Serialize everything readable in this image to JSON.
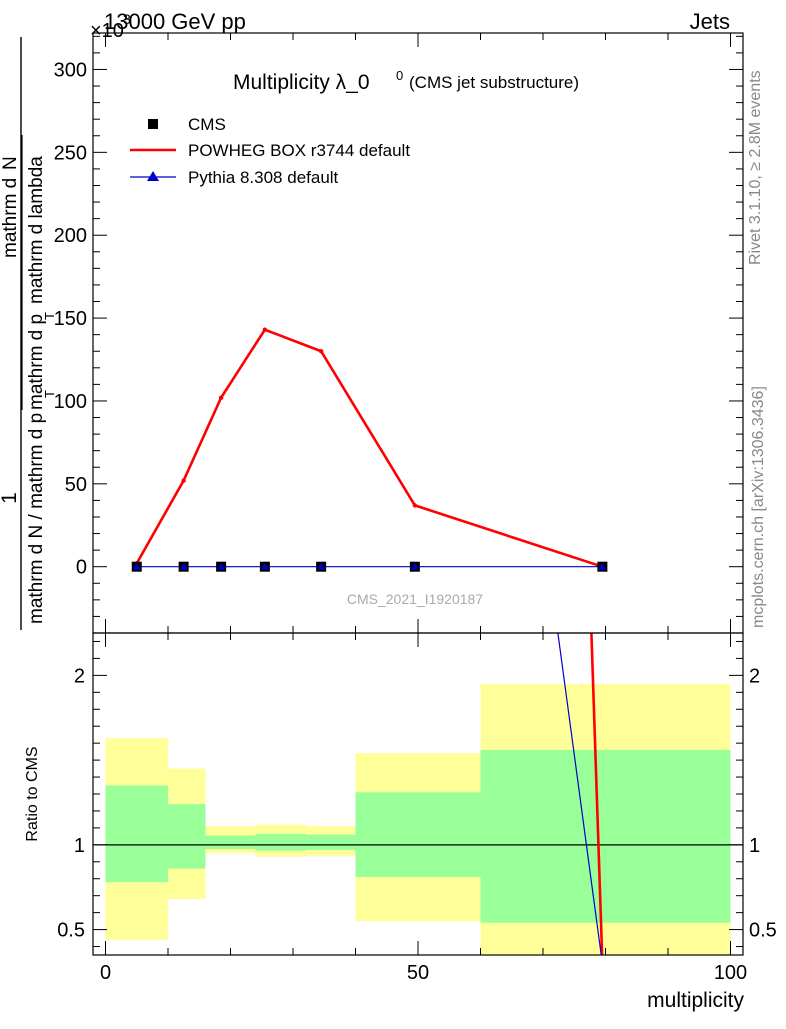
{
  "header": {
    "left": "13000 GeV pp",
    "right": "Jets",
    "exponent_prefix": "×10",
    "exponent_power": "3"
  },
  "side_labels": {
    "rivet": "Rivet 3.1.10, ≥ 2.8M events",
    "mcplots": "mcplots.cern.ch [arXiv:1306.3436]"
  },
  "watermark": "CMS_2021_I1920187",
  "chart_data": [
    {
      "type": "line",
      "title": "Multiplicity λ_0",
      "title_superscript": "0",
      "subtitle": "(CMS jet substructure)",
      "ylabel": {
        "numerator_one": "1",
        "denominator_main": "mathrm d N / mathrm d p",
        "denominator_sub": "T",
        "numerator_frac_top": "mathrm d",
        "numerator_frac_top_2": "N",
        "numerator_frac_bottom": "mathrm d p",
        "numerator_frac_bottom_sub": "T",
        "numerator_frac_bottom_2": "mathrm d lambda"
      },
      "xlim": [
        -2,
        102
      ],
      "ylim": [
        -40,
        322
      ],
      "y_scale_note": "×10^3",
      "y_ticks": [
        0,
        50,
        100,
        150,
        200,
        250,
        300
      ],
      "legend": {
        "placement": "top-left",
        "entries": [
          {
            "label": "CMS",
            "marker": "square",
            "color": "#000000"
          },
          {
            "label": "POWHEG BOX r3744 default",
            "marker": "line",
            "color": "#ff0000"
          },
          {
            "label": "Pythia 8.308 default",
            "marker": "triangle",
            "color": "#0000cc"
          }
        ]
      },
      "series": [
        {
          "name": "CMS",
          "color": "#000000",
          "x": [
            5,
            12.5,
            18.5,
            25.5,
            34.5,
            49.5,
            79.5
          ],
          "y": [
            0,
            0,
            0,
            0,
            0,
            0,
            0
          ]
        },
        {
          "name": "POWHEG BOX r3744 default",
          "color": "#ff0000",
          "x": [
            5,
            12.5,
            18.5,
            25.5,
            34.5,
            49.5,
            79.5
          ],
          "y": [
            2,
            52,
            102,
            143,
            130,
            37,
            0
          ]
        },
        {
          "name": "Pythia 8.308 default",
          "color": "#0000cc",
          "x": [
            5,
            12.5,
            18.5,
            25.5,
            34.5,
            49.5,
            79.5
          ],
          "y": [
            0,
            0,
            0,
            0,
            0,
            0,
            0
          ]
        }
      ]
    },
    {
      "type": "area",
      "ylabel": "Ratio to CMS",
      "xlabel": "multiplicity",
      "xlim": [
        -2,
        102
      ],
      "ylim": [
        0.35,
        2.25
      ],
      "x_ticks": [
        0,
        50,
        100
      ],
      "y_ticks": [
        0.5,
        1,
        2
      ],
      "reference_line": 1,
      "bands": [
        {
          "x0": 0,
          "x1": 10,
          "outer": [
            0.44,
            1.63
          ],
          "inner": [
            0.78,
            1.35
          ]
        },
        {
          "x0": 10,
          "x1": 16,
          "outer": [
            0.68,
            1.45
          ],
          "inner": [
            0.86,
            1.24
          ]
        },
        {
          "x0": 16,
          "x1": 24,
          "outer": [
            0.95,
            1.11
          ],
          "inner": [
            0.975,
            1.055
          ]
        },
        {
          "x0": 24,
          "x1": 32,
          "outer": [
            0.93,
            1.12
          ],
          "inner": [
            0.965,
            1.065
          ]
        },
        {
          "x0": 32,
          "x1": 40,
          "outer": [
            0.935,
            1.11
          ],
          "inner": [
            0.97,
            1.06
          ]
        },
        {
          "x0": 40,
          "x1": 60,
          "outer": [
            0.55,
            1.54
          ],
          "inner": [
            0.81,
            1.31
          ]
        },
        {
          "x0": 60,
          "x1": 100,
          "outer": [
            0.3,
            1.95
          ],
          "inner": [
            0.54,
            1.56
          ]
        }
      ],
      "series": [
        {
          "name": "POWHEG BOX r3744 default",
          "color": "#ff0000",
          "x": [
            77.7,
            79.5
          ],
          "y": [
            2.3,
            0.3
          ]
        },
        {
          "name": "Pythia 8.308 default",
          "color": "#0000cc",
          "x": [
            72.2,
            79.5
          ],
          "y": [
            2.3,
            0.3
          ]
        }
      ]
    }
  ]
}
